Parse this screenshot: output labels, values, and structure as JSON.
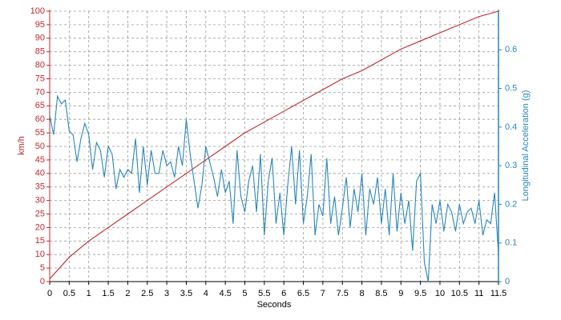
{
  "chart_data": {
    "type": "line",
    "xlabel": "Seconds",
    "ylabel": "km/h",
    "y2label": "Longitudinal Acceleration (g)",
    "xlim": [
      0,
      11.5
    ],
    "xticks": [
      0,
      0.5,
      1,
      1.5,
      2,
      2.5,
      3,
      3.5,
      4,
      4.5,
      5,
      5.5,
      6,
      6.5,
      7,
      7.5,
      8,
      8.5,
      9,
      9.5,
      10,
      10.5,
      11,
      11.5
    ],
    "ylim": [
      0,
      100
    ],
    "yticks": [
      0,
      5,
      10,
      15,
      20,
      25,
      30,
      35,
      40,
      45,
      50,
      55,
      60,
      65,
      70,
      75,
      80,
      85,
      90,
      95,
      100
    ],
    "y2lim": [
      0,
      0.7
    ],
    "y2ticks": [
      0,
      0.1,
      0.2,
      0.3,
      0.4,
      0.5,
      0.6
    ],
    "grid": true,
    "series": [
      {
        "name": "km/h",
        "color": "#c0282d",
        "axis": "y",
        "x": [
          0,
          0.5,
          1,
          1.5,
          2,
          2.5,
          3,
          3.5,
          4,
          4.5,
          5,
          5.5,
          6,
          6.5,
          7,
          7.5,
          8,
          8.5,
          9,
          9.5,
          10,
          10.5,
          11,
          11.5
        ],
        "values": [
          1,
          9,
          15,
          20,
          25,
          30,
          35,
          40,
          45,
          50,
          55,
          59,
          63,
          67,
          71,
          75,
          78,
          82,
          86,
          89,
          92,
          95,
          98,
          100
        ]
      },
      {
        "name": "Longitudinal Acceleration (g)",
        "color": "#2a86b8",
        "axis": "y2",
        "x": [
          0,
          0.1,
          0.2,
          0.3,
          0.4,
          0.5,
          0.6,
          0.7,
          0.8,
          0.9,
          1,
          1.1,
          1.2,
          1.3,
          1.4,
          1.5,
          1.6,
          1.7,
          1.8,
          1.9,
          2,
          2.1,
          2.2,
          2.3,
          2.4,
          2.5,
          2.6,
          2.7,
          2.8,
          2.9,
          3,
          3.1,
          3.2,
          3.3,
          3.4,
          3.5,
          3.6,
          3.7,
          3.8,
          3.9,
          4,
          4.1,
          4.2,
          4.3,
          4.4,
          4.5,
          4.6,
          4.7,
          4.8,
          4.9,
          5,
          5.1,
          5.2,
          5.3,
          5.4,
          5.5,
          5.6,
          5.7,
          5.8,
          5.9,
          6,
          6.1,
          6.2,
          6.3,
          6.4,
          6.5,
          6.6,
          6.7,
          6.8,
          6.9,
          7,
          7.1,
          7.2,
          7.3,
          7.4,
          7.5,
          7.6,
          7.7,
          7.8,
          7.9,
          8,
          8.1,
          8.2,
          8.3,
          8.4,
          8.5,
          8.6,
          8.7,
          8.8,
          8.9,
          9,
          9.1,
          9.2,
          9.3,
          9.4,
          9.5,
          9.6,
          9.7,
          9.8,
          9.9,
          10,
          10.1,
          10.2,
          10.3,
          10.4,
          10.5,
          10.6,
          10.7,
          10.8,
          10.9,
          11,
          11.1,
          11.2,
          11.3,
          11.4,
          11.5
        ],
        "values": [
          0.43,
          0.38,
          0.48,
          0.46,
          0.47,
          0.39,
          0.38,
          0.31,
          0.37,
          0.41,
          0.38,
          0.29,
          0.36,
          0.34,
          0.27,
          0.35,
          0.33,
          0.24,
          0.29,
          0.27,
          0.29,
          0.28,
          0.37,
          0.23,
          0.35,
          0.25,
          0.34,
          0.28,
          0.28,
          0.34,
          0.3,
          0.31,
          0.27,
          0.35,
          0.3,
          0.42,
          0.33,
          0.26,
          0.19,
          0.25,
          0.35,
          0.31,
          0.27,
          0.22,
          0.29,
          0.23,
          0.26,
          0.15,
          0.34,
          0.22,
          0.18,
          0.26,
          0.3,
          0.18,
          0.33,
          0.12,
          0.26,
          0.32,
          0.15,
          0.23,
          0.12,
          0.25,
          0.35,
          0.2,
          0.34,
          0.15,
          0.22,
          0.33,
          0.12,
          0.2,
          0.17,
          0.32,
          0.15,
          0.22,
          0.12,
          0.19,
          0.27,
          0.14,
          0.24,
          0.18,
          0.28,
          0.12,
          0.24,
          0.2,
          0.27,
          0.15,
          0.24,
          0.12,
          0.28,
          0.13,
          0.23,
          0.15,
          0.21,
          0.08,
          0.26,
          0.28,
          0.05,
          0,
          0.2,
          0.15,
          0.21,
          0.13,
          0.2,
          0.18,
          0.13,
          0.2,
          0.15,
          0.18,
          0.19,
          0.15,
          0.21,
          0.12,
          0.16,
          0.15,
          0.23,
          0.07
        ]
      }
    ]
  }
}
